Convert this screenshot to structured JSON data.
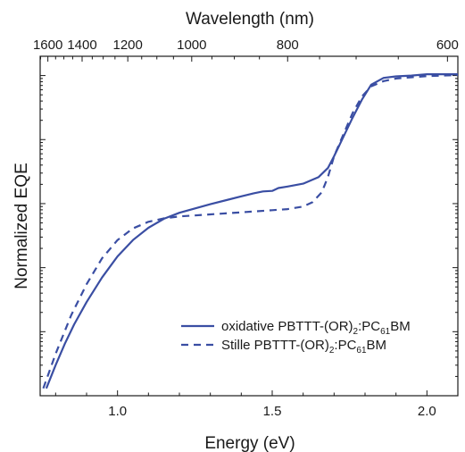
{
  "chart_data": {
    "type": "line",
    "xlabel": "Energy (eV)",
    "ylabel": "Normalized EQE",
    "top_xlabel": "Wavelength (nm)",
    "xlim": [
      0.75,
      2.1
    ],
    "x_ticks": [
      "1.0",
      "1.5",
      "2.0"
    ],
    "x_tick_values": [
      1.0,
      1.5,
      2.0
    ],
    "top_x_ticks": [
      "1600",
      "1400",
      "1200",
      "1000",
      "800",
      "600"
    ],
    "top_x_tick_values_nm": [
      1600,
      1400,
      1200,
      1000,
      800,
      600
    ],
    "y_scale": "log",
    "ylim": [
      1e-05,
      2
    ],
    "grid": false,
    "legend_position": "bottom-right",
    "series": [
      {
        "name": "oxidative PBTTT-(OR)2:PC61BM",
        "legend_main": "oxidative PBTTT-(OR)",
        "legend_sub1": "2",
        "legend_mid": ":PC",
        "legend_sub2": "61",
        "legend_end": "BM",
        "color": "#3a4ea3",
        "line_style": "solid",
        "x": [
          0.77,
          0.8,
          0.83,
          0.86,
          0.9,
          0.95,
          1.0,
          1.05,
          1.1,
          1.15,
          1.2,
          1.3,
          1.4,
          1.44,
          1.47,
          1.5,
          1.52,
          1.55,
          1.6,
          1.65,
          1.68,
          1.7,
          1.73,
          1.76,
          1.79,
          1.82,
          1.86,
          1.9,
          1.95,
          2.0,
          2.05,
          2.1
        ],
        "y": [
          1.3e-05,
          3e-05,
          6.5e-05,
          0.00013,
          0.00029,
          0.0007,
          0.0015,
          0.0027,
          0.0042,
          0.0058,
          0.0072,
          0.0098,
          0.013,
          0.0145,
          0.0155,
          0.0158,
          0.0175,
          0.0185,
          0.0205,
          0.026,
          0.036,
          0.055,
          0.11,
          0.22,
          0.42,
          0.72,
          0.92,
          0.97,
          1.0,
          1.05,
          1.05,
          1.05
        ]
      },
      {
        "name": "Stille PBTTT-(OR)2:PC61BM",
        "legend_main": "Stille PBTTT-(OR)",
        "legend_sub1": "2",
        "legend_mid": ":PC",
        "legend_sub2": "61",
        "legend_end": "BM",
        "color": "#3a4ea3",
        "line_style": "dashed",
        "x": [
          0.76,
          0.8,
          0.85,
          0.9,
          0.95,
          1.0,
          1.05,
          1.1,
          1.15,
          1.2,
          1.3,
          1.4,
          1.5,
          1.55,
          1.6,
          1.63,
          1.66,
          1.68,
          1.7,
          1.73,
          1.76,
          1.79,
          1.82,
          1.86,
          1.9,
          1.95,
          2.0,
          2.05,
          2.1
        ],
        "y": [
          1.3e-05,
          4.5e-05,
          0.00018,
          0.00055,
          0.0014,
          0.0027,
          0.0041,
          0.0052,
          0.0059,
          0.0063,
          0.0068,
          0.0073,
          0.0079,
          0.0082,
          0.009,
          0.0105,
          0.015,
          0.026,
          0.055,
          0.12,
          0.26,
          0.47,
          0.68,
          0.82,
          0.9,
          0.94,
          0.98,
          1.0,
          1.02
        ]
      }
    ]
  }
}
